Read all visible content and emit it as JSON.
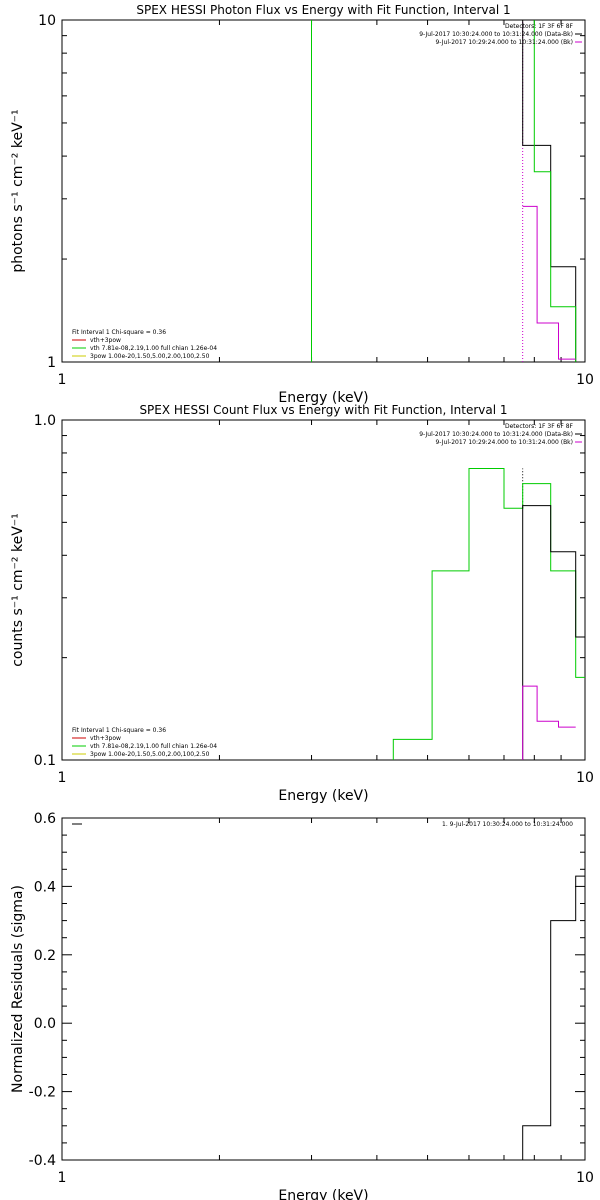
{
  "chart_data": [
    {
      "type": "line",
      "title": "SPEX HESSI Photon Flux vs Energy with Fit Function, Interval 1",
      "xlabel": "Energy (keV)",
      "ylabel": "photons s⁻¹ cm⁻² keV⁻¹",
      "x_scale": "log",
      "y_scale": "log",
      "xlim": [
        1,
        10
      ],
      "ylim": [
        1,
        10
      ],
      "x_tick_labels": [
        {
          "v": 1,
          "label": "1"
        },
        {
          "v": 10,
          "label": "10"
        }
      ],
      "y_tick_labels": [
        {
          "v": 1,
          "label": "1"
        },
        {
          "v": 10,
          "label": "10"
        }
      ],
      "legend_top": [
        "Detectors: 1F 3F 6F 8F",
        "9-Jul-2017 10:30:24.000 to 10:31:24.000 (Data-Bk)",
        "9-Jul-2017 10:29:24.000 to 10:31:24.000 (Bk)"
      ],
      "legend_bottom": [
        "Fit Interval 1   Chi-square = 0.36",
        "vth+3pow",
        "vth 7.81e-08,2.19,1.00  full chian 1.26e-04",
        "3pow 1.00e-20,1.50,5.00,2.00,100,2.50"
      ],
      "legend_top_colors": [
        "#000000",
        "#000000",
        "#cc00cc"
      ],
      "legend_bottom_colors": [
        "#000000",
        "#cc0000",
        "#00cc00",
        "#cccc00"
      ],
      "series": [
        {
          "color": "#00cc00",
          "points": [
            [
              3.0,
              1
            ],
            [
              3.0,
              10
            ]
          ]
        },
        {
          "color": "#000000",
          "points": [
            [
              7.6,
              10
            ],
            [
              7.6,
              4.3
            ],
            [
              8.6,
              4.3
            ],
            [
              8.6,
              1.9
            ],
            [
              9.6,
              1.9
            ],
            [
              9.6,
              1
            ]
          ]
        },
        {
          "color": "#00cc00",
          "points": [
            [
              8.0,
              10
            ],
            [
              8.0,
              3.6
            ],
            [
              8.6,
              3.6
            ],
            [
              8.6,
              1.45
            ],
            [
              9.6,
              1.45
            ],
            [
              9.6,
              1.0
            ]
          ]
        },
        {
          "color": "#cc00cc",
          "points": [
            [
              7.6,
              2.85
            ],
            [
              8.1,
              2.85
            ],
            [
              8.1,
              1.3
            ],
            [
              8.9,
              1.3
            ],
            [
              8.9,
              1.02
            ],
            [
              9.6,
              1.02
            ]
          ]
        }
      ],
      "vlines": [
        {
          "x": 7.6,
          "color": "#cc00cc",
          "dotted": true,
          "from": 1,
          "to": 10
        }
      ]
    },
    {
      "type": "line",
      "title": "SPEX HESSI Count Flux vs Energy with Fit Function, Interval 1",
      "xlabel": "Energy (keV)",
      "ylabel": "counts s⁻¹ cm⁻² keV⁻¹",
      "x_scale": "log",
      "y_scale": "log",
      "xlim": [
        1,
        10
      ],
      "ylim": [
        0.1,
        1.0
      ],
      "x_tick_labels": [
        {
          "v": 1,
          "label": "1"
        },
        {
          "v": 10,
          "label": "10"
        }
      ],
      "y_tick_labels": [
        {
          "v": 0.1,
          "label": "0.1"
        },
        {
          "v": 1.0,
          "label": "1.0"
        }
      ],
      "legend_top": [
        "Detectors: 1F 3F 6F 8F",
        "9-Jul-2017 10:30:24.000 to 10:31:24.000 (Data-Bk)",
        "9-Jul-2017 10:29:24.000 to 10:31:24.000 (Bk)"
      ],
      "legend_bottom": [
        "Fit Interval 1   Chi-square = 0.36",
        "vth+3pow",
        "vth 7.81e-08,2.19,1.00  full chian 1.26e-04",
        "3pow 1.00e-20,1.50,5.00,2.00,100,2.50"
      ],
      "legend_top_colors": [
        "#000000",
        "#000000",
        "#cc00cc"
      ],
      "legend_bottom_colors": [
        "#000000",
        "#cc0000",
        "#00cc00",
        "#cccc00"
      ],
      "series": [
        {
          "color": "#00cc00",
          "points": [
            [
              4.3,
              0.1
            ],
            [
              4.3,
              0.115
            ],
            [
              5.1,
              0.115
            ],
            [
              5.1,
              0.36
            ],
            [
              6.0,
              0.36
            ],
            [
              6.0,
              0.72
            ],
            [
              7.0,
              0.72
            ],
            [
              7.0,
              0.55
            ],
            [
              7.6,
              0.55
            ],
            [
              7.6,
              0.65
            ],
            [
              8.6,
              0.65
            ],
            [
              8.6,
              0.36
            ],
            [
              9.6,
              0.36
            ],
            [
              9.6,
              0.175
            ],
            [
              10,
              0.175
            ]
          ]
        },
        {
          "color": "#000000",
          "points": [
            [
              7.6,
              0.1
            ],
            [
              7.6,
              0.56
            ],
            [
              8.6,
              0.56
            ],
            [
              8.6,
              0.41
            ],
            [
              9.6,
              0.41
            ],
            [
              9.6,
              0.23
            ],
            [
              10,
              0.23
            ]
          ]
        },
        {
          "color": "#cc00cc",
          "points": [
            [
              7.6,
              0.1
            ],
            [
              7.6,
              0.165
            ],
            [
              8.1,
              0.165
            ],
            [
              8.1,
              0.13
            ],
            [
              8.9,
              0.13
            ],
            [
              8.9,
              0.125
            ],
            [
              9.6,
              0.125
            ]
          ]
        }
      ],
      "vlines": [
        {
          "x": 7.6,
          "color": "#000000",
          "dotted": true,
          "from": 0.55,
          "to": 0.72
        }
      ]
    },
    {
      "type": "line",
      "title": "",
      "xlabel": "Energy (keV)",
      "ylabel": "Normalized Residuals (sigma)",
      "x_scale": "log",
      "y_scale": "linear",
      "xlim": [
        1,
        10
      ],
      "ylim": [
        -0.4,
        0.6
      ],
      "x_tick_labels": [
        {
          "v": 1,
          "label": "1"
        },
        {
          "v": 10,
          "label": "10"
        }
      ],
      "y_tick_labels": [
        {
          "v": -0.4,
          "label": "-0.4"
        },
        {
          "v": -0.2,
          "label": "-0.2"
        },
        {
          "v": 0.0,
          "label": "0.0"
        },
        {
          "v": 0.2,
          "label": "0.2"
        },
        {
          "v": 0.4,
          "label": "0.4"
        },
        {
          "v": 0.6,
          "label": "0.6"
        }
      ],
      "legend_top": [
        "1.  9-Jul-2017 10:30:24.000 to 10:31:24.000"
      ],
      "legend_top_colors": [
        "#000000"
      ],
      "legend_bottom": [],
      "legend_bottom_colors": [],
      "series": [
        {
          "color": "#000000",
          "points": [
            [
              7.6,
              -0.4
            ],
            [
              7.6,
              -0.3
            ],
            [
              8.6,
              -0.3
            ],
            [
              8.6,
              0.3
            ],
            [
              9.6,
              0.3
            ],
            [
              9.6,
              0.43
            ],
            [
              10,
              0.43
            ]
          ]
        }
      ],
      "vlines": []
    }
  ]
}
